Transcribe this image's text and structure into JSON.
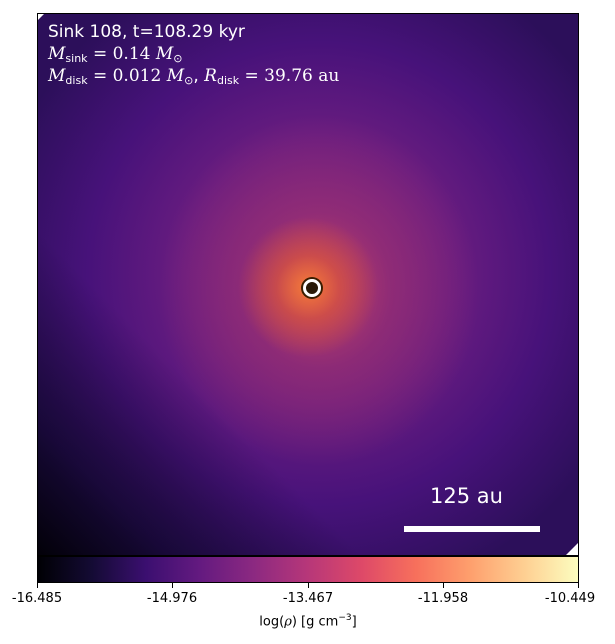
{
  "panel": {
    "title": "Sink 108, t=108.29 kyr",
    "m_sink_symbol": "M",
    "m_sink_sub": "sink",
    "m_sink_value": "= 0.14",
    "m_sink_unit": "M",
    "m_sink_unit_sub": "⊙",
    "m_disk_symbol": "M",
    "m_disk_sub": "disk",
    "m_disk_value": "= 0.012",
    "m_disk_unit": "M",
    "m_disk_unit_sub": "⊙",
    "comma": ",",
    "r_disk_symbol": "R",
    "r_disk_sub": "disk",
    "r_disk_value": "= 39.76",
    "r_disk_unit": "au",
    "scale_bar_label": "125 au"
  },
  "colorbar": {
    "colormap": "inferno",
    "ticks": [
      "-16.485",
      "-14.976",
      "-13.467",
      "-11.958",
      "-10.449"
    ],
    "label_prefix": "log(",
    "label_symbol": "ρ",
    "label_suffix": ") [g cm",
    "label_exponent": "−3",
    "label_close": "]"
  }
}
